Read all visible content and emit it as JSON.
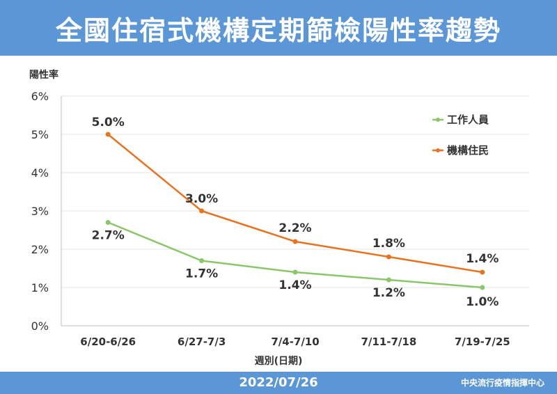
{
  "title": "全國住宿式機構定期篩檢陽性率趨勢",
  "footer": {
    "date": "2022/07/26",
    "source": "中央流行疫情指揮中心"
  },
  "chart_data": {
    "type": "line",
    "ylabel": "陽性率",
    "xlabel": "週別(日期)",
    "categories": [
      "6/20-6/26",
      "6/27-7/3",
      "7/4-7/10",
      "7/11-7/18",
      "7/19-7/25"
    ],
    "ylim": [
      0,
      6
    ],
    "yticks": [
      "0%",
      "1%",
      "2%",
      "3%",
      "4%",
      "5%",
      "6%"
    ],
    "grid": true,
    "legend_position": "top-right",
    "series": [
      {
        "name": "工作人員",
        "color": "#8cc66a",
        "values": [
          2.7,
          1.7,
          1.4,
          1.2,
          1.0
        ],
        "labels": [
          "2.7%",
          "1.7%",
          "1.4%",
          "1.2%",
          "1.0%"
        ]
      },
      {
        "name": "機構住民",
        "color": "#e8731f",
        "values": [
          5.0,
          3.0,
          2.2,
          1.8,
          1.4
        ],
        "labels": [
          "5.0%",
          "3.0%",
          "2.2%",
          "1.8%",
          "1.4%"
        ]
      }
    ]
  }
}
